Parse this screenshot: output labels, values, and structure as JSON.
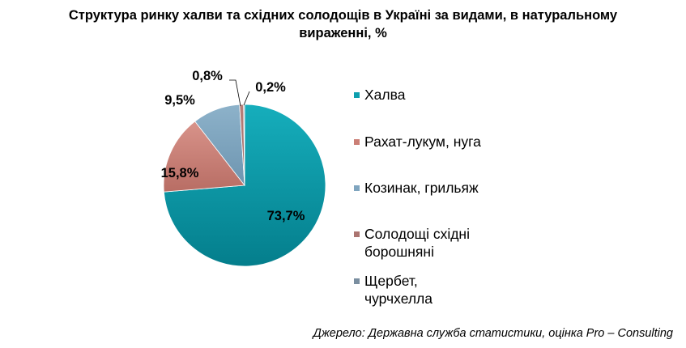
{
  "chart_data": {
    "type": "pie",
    "title_lines": [
      "Структура ринку халви та східних солодощів в Україні за видами, в натуральному",
      "вираженні, %"
    ],
    "slices": [
      {
        "label_lines": [
          "Халва"
        ],
        "value": 73.7,
        "value_label": "73,7%",
        "color": "#0E9FAE"
      },
      {
        "label_lines": [
          "Рахат-лукум, нуга"
        ],
        "value": 15.8,
        "value_label": "15,8%",
        "color": "#CB7F76"
      },
      {
        "label_lines": [
          "Козинак, грильяж"
        ],
        "value": 9.5,
        "value_label": "9,5%",
        "color": "#7FA5BF"
      },
      {
        "label_lines": [
          "Солодощі східні",
          "борошняні"
        ],
        "value": 0.8,
        "value_label": "0,8%",
        "color": "#AB7470"
      },
      {
        "label_lines": [
          "Щербет,",
          "чурчхелла"
        ],
        "value": 0.2,
        "value_label": "0,2%",
        "color": "#7A8EA0"
      }
    ],
    "legend_position": "right",
    "source": "Джерело: Державна служба статистики, оцінка Pro – Consulting"
  }
}
